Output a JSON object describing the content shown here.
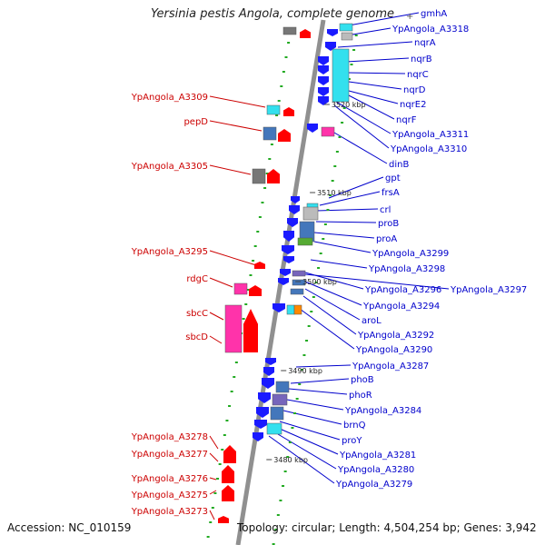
{
  "title": "Yersinia pestis Angola, complete genome",
  "footer": {
    "accession": "Accession: NC_010159",
    "topology": "Topology: circular; Length: 4,504,254 bp; Genes: 3,942"
  },
  "colors": {
    "axis": "#909090",
    "label_left": "#cc0000",
    "label_right": "#0000cc",
    "forward_gene": "#ff0000",
    "reverse_gene": "#1a1aff",
    "cds_cyan": "#33e0ee",
    "cds_magenta": "#ff33aa",
    "cds_grey": "#777777",
    "cds_steel": "#4477bb",
    "cds_green": "#55aa33",
    "cds_purple": "#7766bb",
    "cds_orange": "#ff8800",
    "intergenic": "#22aa22"
  },
  "scale_ticks": [
    "3520 kbp",
    "3510 kbp",
    "3500 kbp",
    "3490 kbp",
    "3480 kbp"
  ],
  "left_labels": [
    "YpAngola_A3309",
    "pepD",
    "YpAngola_A3305",
    "YpAngola_A3295",
    "rdgC",
    "sbcC",
    "sbcD",
    "YpAngola_A3278",
    "YpAngola_A3277",
    "YpAngola_A3276",
    "YpAngola_A3275",
    "YpAngola_A3273"
  ],
  "right_labels": [
    "gmhA",
    "YpAngola_A3318",
    "nqrA",
    "nqrB",
    "nqrC",
    "nqrD",
    "nqrE2",
    "nqrF",
    "YpAngola_A3311",
    "YpAngola_A3310",
    "dinB",
    "gpt",
    "frsA",
    "crl",
    "proB",
    "proA",
    "YpAngola_A3299",
    "YpAngola_A3298",
    "YpAngola_A3296",
    "YpAngola_A3297",
    "YpAngola_A3294",
    "aroL",
    "YpAngola_A3292",
    "YpAngola_A3290",
    "YpAngola_A3287",
    "phoB",
    "phoR",
    "YpAngola_A3284",
    "brnQ",
    "proY",
    "YpAngola_A3281",
    "YpAngola_A3280",
    "YpAngola_A3279"
  ]
}
